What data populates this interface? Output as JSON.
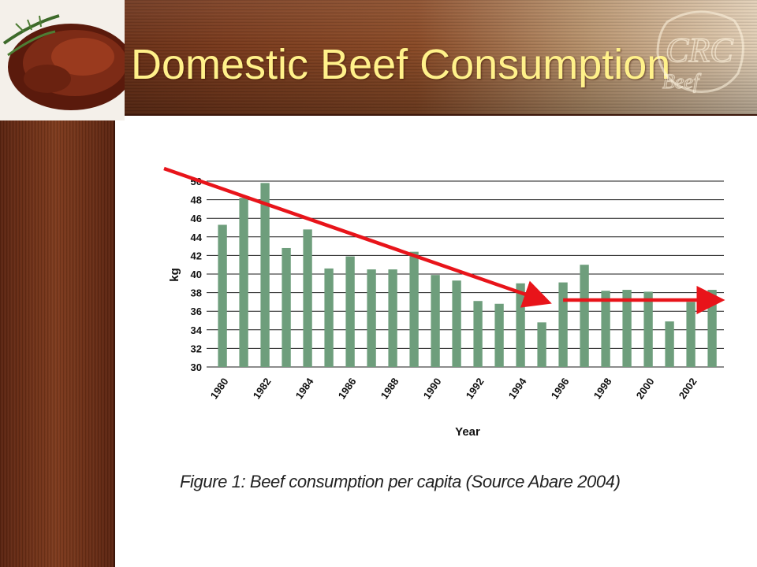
{
  "slide": {
    "title": "Domestic Beef Consumption",
    "caption": "Figure 1: Beef consumption per capita (Source Abare 2004)",
    "watermark_text": "CRC Beef",
    "colors": {
      "title": "#fff18a",
      "bar": "#6e9e7c",
      "trend_arrow": "#e8141a",
      "banner": "#7a3a1c"
    }
  },
  "chart_data": {
    "type": "bar",
    "title": "",
    "xlabel": "Year",
    "ylabel": "kg",
    "ylim": [
      30,
      50
    ],
    "yticks": [
      30,
      32,
      34,
      36,
      38,
      40,
      42,
      44,
      46,
      48,
      50
    ],
    "categories": [
      "1980",
      "1981",
      "1982",
      "1983",
      "1984",
      "1985",
      "1986",
      "1987",
      "1988",
      "1989",
      "1990",
      "1991",
      "1992",
      "1993",
      "1994",
      "1995",
      "1996",
      "1997",
      "1998",
      "1999",
      "2000",
      "2001",
      "2002",
      "2003"
    ],
    "tick_labels": [
      "1980",
      "1982",
      "1984",
      "1986",
      "1988",
      "1990",
      "1992",
      "1994",
      "1996",
      "1998",
      "2000",
      "2002"
    ],
    "values": [
      45.3,
      48.2,
      49.8,
      42.8,
      44.8,
      40.6,
      41.9,
      40.5,
      40.5,
      42.4,
      39.9,
      39.3,
      37.1,
      36.8,
      39.0,
      34.8,
      39.1,
      41.0,
      38.2,
      38.3,
      38.1,
      34.9,
      37.0,
      38.3
    ],
    "grid": true,
    "annotations": [
      {
        "kind": "arrow",
        "color": "#e8141a",
        "from": {
          "x": "1980",
          "y": 50
        },
        "to": {
          "x": "1995",
          "y": 37.2
        }
      },
      {
        "kind": "arrow",
        "color": "#e8141a",
        "from": {
          "x": "1996",
          "y": 37.2
        },
        "to": {
          "x": "2003",
          "y": 37.2
        }
      }
    ]
  }
}
